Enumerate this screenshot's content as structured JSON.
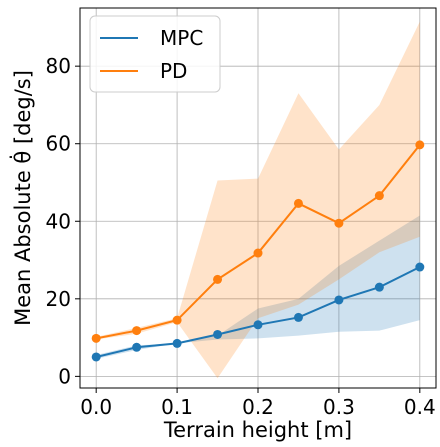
{
  "chart_data": {
    "type": "line",
    "xlabel": "Terrain height [m]",
    "ylabel": "Mean Absolute θ̇ [deg/s]",
    "xlim": [
      -0.02,
      0.42
    ],
    "ylim": [
      -3,
      95
    ],
    "x_ticks": [
      0.0,
      0.1,
      0.2,
      0.3,
      0.4
    ],
    "x_tick_labels": [
      "0.0",
      "0.1",
      "0.2",
      "0.3",
      "0.4"
    ],
    "y_ticks": [
      0,
      20,
      40,
      60,
      80
    ],
    "y_tick_labels": [
      "0",
      "20",
      "40",
      "60",
      "80"
    ],
    "grid": true,
    "legend_position": "top-left",
    "x": [
      0.0,
      0.05,
      0.1,
      0.15,
      0.2,
      0.25,
      0.3,
      0.35,
      0.4
    ],
    "series": [
      {
        "name": "MPC",
        "color": "#1f77b4",
        "values": [
          5,
          7.5,
          8.5,
          10.8,
          13.3,
          15.2,
          19.7,
          23,
          28.2
        ],
        "band_lower": [
          4.5,
          6.8,
          8.5,
          9.5,
          9.8,
          10.5,
          11.5,
          11.8,
          14.5
        ],
        "band_upper": [
          5.5,
          8.0,
          8.5,
          10.5,
          17.5,
          20.0,
          28.5,
          35.0,
          41.5
        ]
      },
      {
        "name": "PD",
        "color": "#ff7f0e",
        "values": [
          9.8,
          11.8,
          14.5,
          25,
          31.8,
          44.6,
          39.5,
          46.6,
          59.7
        ],
        "band_lower": [
          9.5,
          11.0,
          14.0,
          -0.5,
          15.0,
          18.5,
          25.0,
          32.0,
          36.0
        ],
        "band_upper": [
          10.2,
          12.5,
          15.0,
          50.5,
          51.0,
          73.0,
          58.5,
          70.0,
          91.5
        ]
      }
    ]
  }
}
